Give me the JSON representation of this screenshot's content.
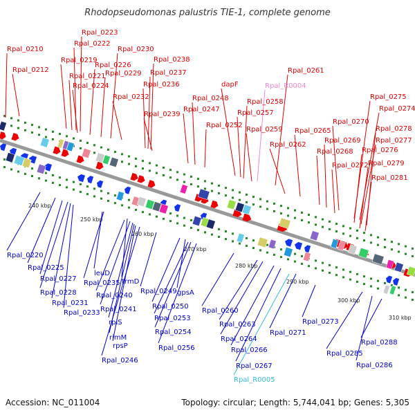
{
  "title": "Rhodopseudomonas palustris TIE-1, complete genome",
  "accession": "Accession: NC_011004",
  "summary": "Topology: circular; Length: 5,744,041 bp; Genes: 5,305",
  "colors": {
    "top_label": "#dd0000",
    "bottom_label": "#0000cc",
    "rna_top": "#ee88cc",
    "rna_bottom": "#33bbdd",
    "backbone": "#999999",
    "tick": "#228822",
    "forward_gene": "#ee0000",
    "reverse_gene": "#1133ee"
  },
  "kbp_ticks": [
    "240 kbp",
    "250 kbp",
    "260 kbp",
    "270 kbp",
    "280 kbp",
    "290 kbp",
    "300 kbp",
    "310 kbp"
  ],
  "top_labels": [
    "Rpal_0210",
    "Rpal_0212",
    "Rpal_0219",
    "Rpal_0221",
    "Rpal_0222",
    "Rpal_0223",
    "Rpal_0224",
    "Rpal_0226",
    "Rpal_0229",
    "Rpal_0230",
    "Rpal_0232",
    "Rpal_0236",
    "Rpal_0237",
    "Rpal_0238",
    "Rpal_0239",
    "Rpal_0247",
    "Rpal_0248",
    "Rpal_0252",
    "dapF",
    "Rpal_0257",
    "Rpal_0258",
    "Rpal_R0004",
    "Rpal_0259",
    "Rpal_0261",
    "Rpal_0262",
    "Rpal_0265",
    "Rpal_0268",
    "Rpal_0269",
    "Rpal_0270",
    "Rpal_0272",
    "Rpal_0274",
    "Rpal_0275",
    "Rpal_0276",
    "Rpal_0277",
    "Rpal_0278",
    "Rpal_0279",
    "Rpal_0281"
  ],
  "bottom_labels": [
    "Rpal_0220",
    "Rpal_0225",
    "Rpal_0227",
    "Rpal_0228",
    "Rpal_0231",
    "Rpal_0233",
    "leuD",
    "Rpal_0235",
    "trmD",
    "Rpal_0240",
    "Rpal_0241",
    "rplS",
    "rimM",
    "rpsP",
    "Rpal_0246",
    "Rpal_0249",
    "gpsA",
    "Rpal_0250",
    "Rpal_0253",
    "Rpal_0254",
    "Rpal_0256",
    "Rpal_0260",
    "Rpal_0263",
    "Rpal_0264",
    "Rpal_0266",
    "Rpal_0267",
    "Rpal_R0005",
    "Rpal_0271",
    "Rpal_0273",
    "Rpal_0285",
    "Rpal_0286",
    "Rpal_0288"
  ]
}
